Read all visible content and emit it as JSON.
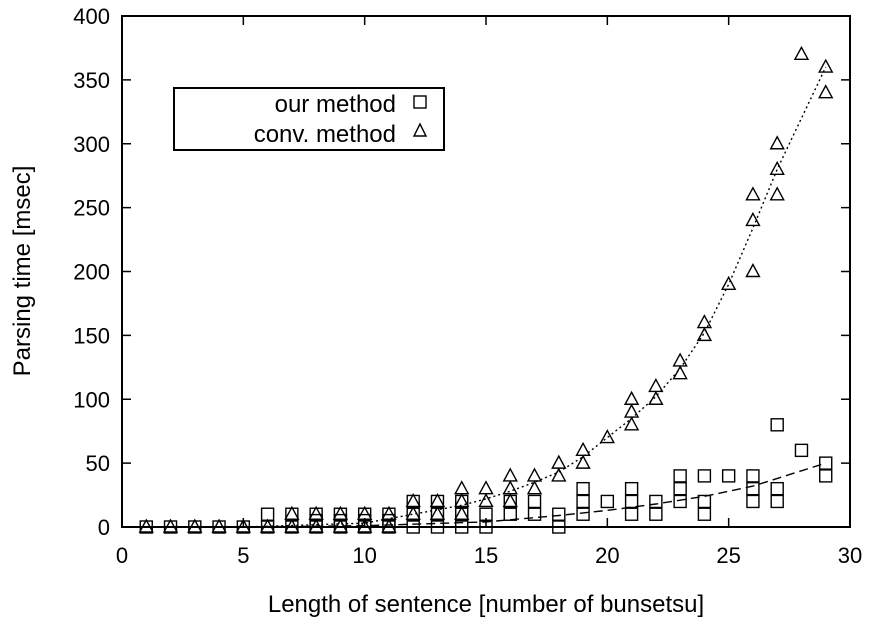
{
  "chart_data": {
    "type": "scatter",
    "title": "",
    "xlabel": "Length of sentence [number of bunsetsu]",
    "ylabel": "Parsing time [msec]",
    "xlim": [
      0,
      30
    ],
    "ylim": [
      0,
      400
    ],
    "xticks": [
      0,
      5,
      10,
      15,
      20,
      25,
      30
    ],
    "yticks": [
      0,
      50,
      100,
      150,
      200,
      250,
      300,
      350,
      400
    ],
    "grid": false,
    "legend_position": "top-left",
    "series": [
      {
        "name": "our method",
        "marker": "square",
        "x": [
          1,
          2,
          3,
          4,
          5,
          6,
          6,
          7,
          7,
          8,
          8,
          8,
          9,
          9,
          9,
          10,
          10,
          10,
          11,
          11,
          11,
          12,
          12,
          12,
          13,
          13,
          13,
          14,
          14,
          14,
          15,
          15,
          16,
          16,
          17,
          17,
          18,
          18,
          19,
          19,
          19,
          20,
          21,
          21,
          21,
          22,
          22,
          23,
          23,
          23,
          24,
          24,
          24,
          25,
          26,
          26,
          26,
          27,
          27,
          27,
          28,
          29,
          29
        ],
        "y": [
          0,
          0,
          0,
          0,
          0,
          0,
          10,
          0,
          10,
          0,
          5,
          10,
          0,
          5,
          10,
          0,
          5,
          10,
          0,
          5,
          10,
          0,
          10,
          20,
          0,
          10,
          20,
          0,
          10,
          20,
          0,
          10,
          10,
          20,
          10,
          20,
          0,
          10,
          10,
          20,
          30,
          20,
          10,
          20,
          30,
          10,
          20,
          20,
          30,
          40,
          10,
          20,
          40,
          40,
          20,
          30,
          40,
          20,
          30,
          80,
          60,
          40,
          50
        ]
      },
      {
        "name": "conv. method",
        "marker": "triangle",
        "x": [
          1,
          2,
          3,
          4,
          5,
          6,
          7,
          7,
          8,
          8,
          9,
          9,
          10,
          10,
          11,
          11,
          12,
          12,
          13,
          13,
          14,
          14,
          14,
          15,
          15,
          16,
          16,
          16,
          17,
          17,
          18,
          18,
          19,
          19,
          20,
          21,
          21,
          21,
          22,
          22,
          23,
          23,
          24,
          24,
          25,
          26,
          26,
          26,
          27,
          27,
          27,
          28,
          29,
          29
        ],
        "y": [
          0,
          0,
          0,
          0,
          0,
          0,
          0,
          10,
          0,
          10,
          0,
          10,
          0,
          10,
          0,
          10,
          10,
          20,
          10,
          20,
          10,
          20,
          30,
          20,
          30,
          20,
          30,
          40,
          30,
          40,
          40,
          50,
          50,
          60,
          70,
          80,
          90,
          100,
          100,
          110,
          120,
          130,
          150,
          160,
          190,
          200,
          240,
          260,
          260,
          280,
          300,
          370,
          340,
          360
        ]
      }
    ],
    "fit_lines": [
      {
        "series": "our method",
        "style": "dashed",
        "x": [
          1,
          5,
          10,
          15,
          18,
          20,
          22,
          24,
          26,
          28,
          29
        ],
        "y": [
          0,
          0,
          1,
          4,
          9,
          13,
          18,
          24,
          32,
          44,
          50
        ]
      },
      {
        "series": "conv. method",
        "style": "dotted",
        "x": [
          1,
          5,
          10,
          12,
          14,
          15,
          16,
          17,
          18,
          19,
          20,
          21,
          22,
          23,
          24,
          25,
          26,
          27,
          28,
          29
        ],
        "y": [
          0,
          0,
          3,
          10,
          17,
          22,
          28,
          35,
          43,
          55,
          70,
          85,
          102,
          124,
          152,
          190,
          234,
          280,
          320,
          360
        ]
      }
    ]
  }
}
